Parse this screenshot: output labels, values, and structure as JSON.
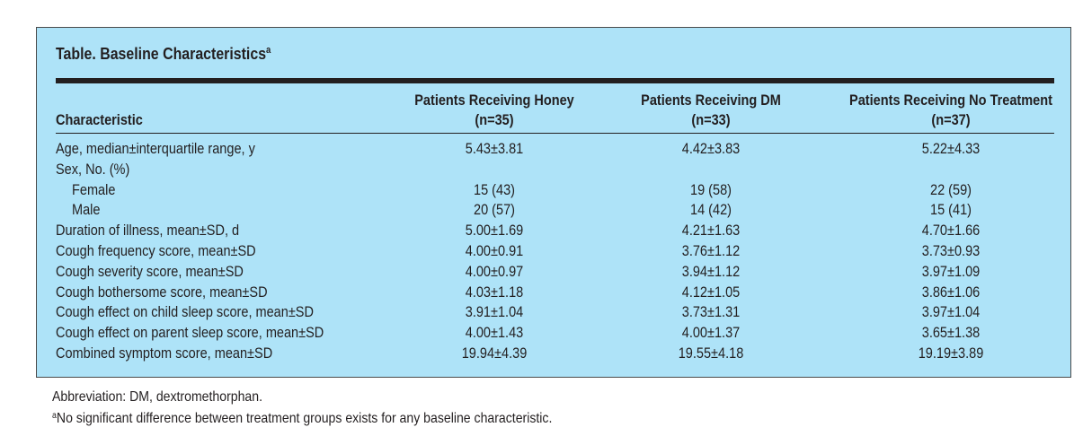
{
  "table": {
    "title": "Table. Baseline Characteristics",
    "title_footnote_marker": "a",
    "headers": {
      "characteristic": "Characteristic",
      "columns": [
        {
          "line1": "Patients Receiving Honey",
          "line2": "(n=35)"
        },
        {
          "line1": "Patients Receiving DM",
          "line2": "(n=33)"
        },
        {
          "line1": "Patients Receiving No Treatment",
          "line2": "(n=37)"
        }
      ]
    },
    "rows": [
      {
        "label": "Age, median±interquartile range, y",
        "values": [
          "5.43±3.81",
          "4.42±3.83",
          "5.22±4.33"
        ],
        "indent": false
      },
      {
        "label": "Sex, No. (%)",
        "values": [
          "",
          "",
          ""
        ],
        "indent": false
      },
      {
        "label": "Female",
        "values": [
          "15 (43)",
          "19 (58)",
          "22 (59)"
        ],
        "indent": true
      },
      {
        "label": "Male",
        "values": [
          "20 (57)",
          "14 (42)",
          "15 (41)"
        ],
        "indent": true
      },
      {
        "label": "Duration of illness, mean±SD, d",
        "values": [
          "5.00±1.69",
          "4.21±1.63",
          "4.70±1.66"
        ],
        "indent": false
      },
      {
        "label": "Cough frequency score, mean±SD",
        "values": [
          "4.00±0.91",
          "3.76±1.12",
          "3.73±0.93"
        ],
        "indent": false
      },
      {
        "label": "Cough severity score, mean±SD",
        "values": [
          "4.00±0.97",
          "3.94±1.12",
          "3.97±1.09"
        ],
        "indent": false
      },
      {
        "label": "Cough bothersome score, mean±SD",
        "values": [
          "4.03±1.18",
          "4.12±1.05",
          "3.86±1.06"
        ],
        "indent": false
      },
      {
        "label": "Cough effect on child sleep score, mean±SD",
        "values": [
          "3.91±1.04",
          "3.73±1.31",
          "3.97±1.04"
        ],
        "indent": false
      },
      {
        "label": "Cough effect on parent sleep score, mean±SD",
        "values": [
          "4.00±1.43",
          "4.00±1.37",
          "3.65±1.38"
        ],
        "indent": false
      },
      {
        "label": "Combined symptom score, mean±SD",
        "values": [
          "19.94±4.39",
          "19.55±4.18",
          "19.19±3.89"
        ],
        "indent": false
      }
    ]
  },
  "footnotes": {
    "abbreviation": "Abbreviation: DM, dextromethorphan.",
    "note_marker": "a",
    "note_text": "No significant difference between treatment groups exists for any baseline characteristic."
  },
  "colors": {
    "panel_background": "#aee3f8",
    "text": "#231f20"
  }
}
